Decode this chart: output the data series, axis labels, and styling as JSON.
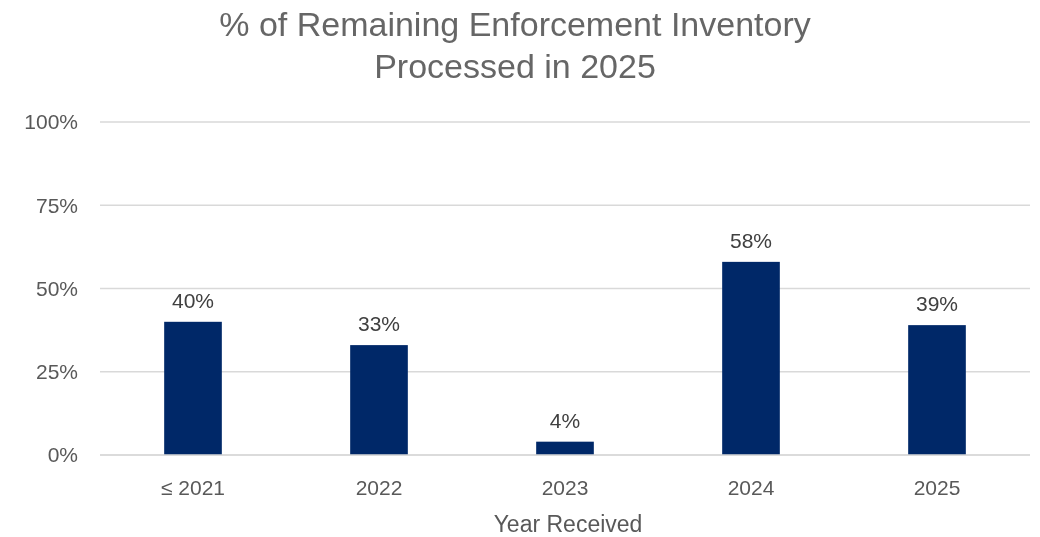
{
  "chart_data": {
    "type": "bar",
    "title": "% of Remaining Enforcement Inventory Processed in 2025",
    "xlabel": "Year Received",
    "categories": [
      "≤ 2021",
      "2022",
      "2023",
      "2024",
      "2025"
    ],
    "values": [
      40,
      33,
      4,
      58,
      39
    ],
    "value_labels": [
      "40%",
      "33%",
      "4%",
      "58%",
      "39%"
    ],
    "color": "#002868",
    "ylim": [
      0,
      100
    ],
    "yticks": [
      {
        "value": 0,
        "label": "0%"
      },
      {
        "value": 25,
        "label": "25%"
      },
      {
        "value": 50,
        "label": "50%"
      },
      {
        "value": 75,
        "label": "75%"
      },
      {
        "value": 100,
        "label": "100%"
      }
    ],
    "grid": true
  }
}
